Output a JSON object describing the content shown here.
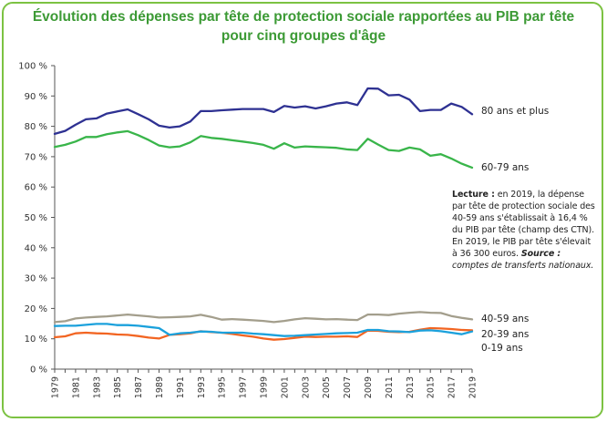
{
  "title_lines": [
    "Évolution des dépenses par tête de protection sociale rapportées au PIB par tête",
    "pour cinq groupes d'âge"
  ],
  "note": {
    "lecture_label": "Lecture :",
    "text": " en 2019, la dépense par tête de protection sociale des 40-59 ans s'établissait à 16,4 % du PIB par tête (champ des CTN). En 2019, le PIB par tête s'élevait à 36 300 euros. ",
    "source_label": "Source :",
    "source_text": " comptes de transferts nationaux."
  },
  "colors": {
    "frame": "#7cc242",
    "title": "#3c9a35",
    "series_80plus": "#2e3192",
    "series_6079": "#39b54a",
    "series_4059": "#a39e8c",
    "series_2039": "#f26522",
    "series_019": "#1ba1dc"
  },
  "chart_data": {
    "type": "line",
    "title": "Évolution des dépenses par tête de protection sociale rapportées au PIB par tête pour cinq groupes d'âge",
    "xlabel": "",
    "ylabel": "",
    "ylim": [
      0,
      100
    ],
    "yticks": [
      "0 %",
      "10 %",
      "20 %",
      "30 %",
      "40 %",
      "50 %",
      "60 %",
      "70 %",
      "80 %",
      "90 %",
      "100 %"
    ],
    "xticks": [
      "1979",
      "1981",
      "1983",
      "1985",
      "1987",
      "1989",
      "1991",
      "1993",
      "1995",
      "1997",
      "1999",
      "2001",
      "2003",
      "2005",
      "2007",
      "2009",
      "2011",
      "2013",
      "2015",
      "2017",
      "2019"
    ],
    "grid": false,
    "x": [
      1979,
      1980,
      1981,
      1982,
      1983,
      1984,
      1985,
      1986,
      1987,
      1988,
      1989,
      1990,
      1991,
      1992,
      1993,
      1994,
      1995,
      1996,
      1997,
      1998,
      1999,
      2000,
      2001,
      2002,
      2003,
      2004,
      2005,
      2006,
      2007,
      2008,
      2009,
      2010,
      2011,
      2012,
      2013,
      2014,
      2015,
      2016,
      2017,
      2018,
      2019
    ],
    "series": [
      {
        "name": "80 ans et plus",
        "color": "#2e3192",
        "values": [
          77.5,
          78.5,
          80.5,
          82.3,
          82.6,
          84.2,
          84.9,
          85.6,
          84.0,
          82.3,
          80.2,
          79.6,
          80.0,
          81.6,
          85.0,
          85.0,
          85.3,
          85.5,
          85.7,
          85.7,
          85.7,
          84.7,
          86.7,
          86.2,
          86.6,
          85.9,
          86.6,
          87.5,
          87.9,
          87.0,
          92.5,
          92.4,
          90.2,
          90.4,
          88.8,
          85.0,
          85.4,
          85.4,
          87.5,
          86.4,
          84.0
        ]
      },
      {
        "name": "60-79 ans",
        "color": "#39b54a",
        "values": [
          73.2,
          73.9,
          75.0,
          76.5,
          76.5,
          77.4,
          78.0,
          78.4,
          77.1,
          75.5,
          73.7,
          73.1,
          73.4,
          74.7,
          76.8,
          76.2,
          75.9,
          75.4,
          75.0,
          74.5,
          73.9,
          72.6,
          74.4,
          73.0,
          73.4,
          73.2,
          73.1,
          72.9,
          72.4,
          72.2,
          75.9,
          74.0,
          72.2,
          71.9,
          73.0,
          72.4,
          70.3,
          70.8,
          69.4,
          67.7,
          66.4
        ]
      },
      {
        "name": "40-59 ans",
        "color": "#a39e8c",
        "values": [
          15.5,
          15.8,
          16.7,
          17.0,
          17.2,
          17.4,
          17.7,
          18.0,
          17.7,
          17.4,
          17.0,
          17.1,
          17.2,
          17.4,
          17.9,
          17.2,
          16.3,
          16.5,
          16.3,
          16.1,
          15.9,
          15.5,
          15.9,
          16.4,
          16.8,
          16.6,
          16.4,
          16.5,
          16.3,
          16.2,
          18.0,
          18.0,
          17.8,
          18.3,
          18.6,
          18.8,
          18.6,
          18.5,
          17.5,
          16.9,
          16.4
        ]
      },
      {
        "name": "20-39 ans",
        "color": "#f26522",
        "values": [
          10.5,
          10.8,
          11.8,
          12.0,
          11.8,
          11.7,
          11.4,
          11.3,
          10.9,
          10.4,
          10.1,
          11.3,
          11.5,
          11.8,
          12.5,
          12.2,
          12.0,
          11.6,
          11.1,
          10.7,
          10.1,
          9.7,
          9.9,
          10.3,
          10.7,
          10.6,
          10.7,
          10.7,
          10.8,
          10.6,
          12.7,
          12.6,
          12.3,
          12.2,
          12.3,
          13.0,
          13.5,
          13.4,
          13.2,
          12.9,
          12.8
        ]
      },
      {
        "name": "0-19 ans",
        "color": "#1ba1dc",
        "values": [
          14.2,
          14.3,
          14.3,
          14.6,
          14.9,
          14.9,
          14.5,
          14.5,
          14.3,
          13.9,
          13.5,
          11.3,
          11.8,
          12.0,
          12.4,
          12.3,
          12.0,
          12.0,
          12.0,
          11.7,
          11.5,
          11.2,
          10.9,
          11.0,
          11.2,
          11.4,
          11.6,
          11.8,
          11.9,
          12.0,
          12.9,
          12.9,
          12.5,
          12.4,
          12.2,
          12.7,
          12.8,
          12.5,
          12.0,
          11.5,
          12.4
        ]
      }
    ],
    "series_labels": [
      "80 ans et plus",
      "60-79 ans",
      "40-59 ans",
      "20-39 ans",
      "0-19 ans"
    ]
  }
}
